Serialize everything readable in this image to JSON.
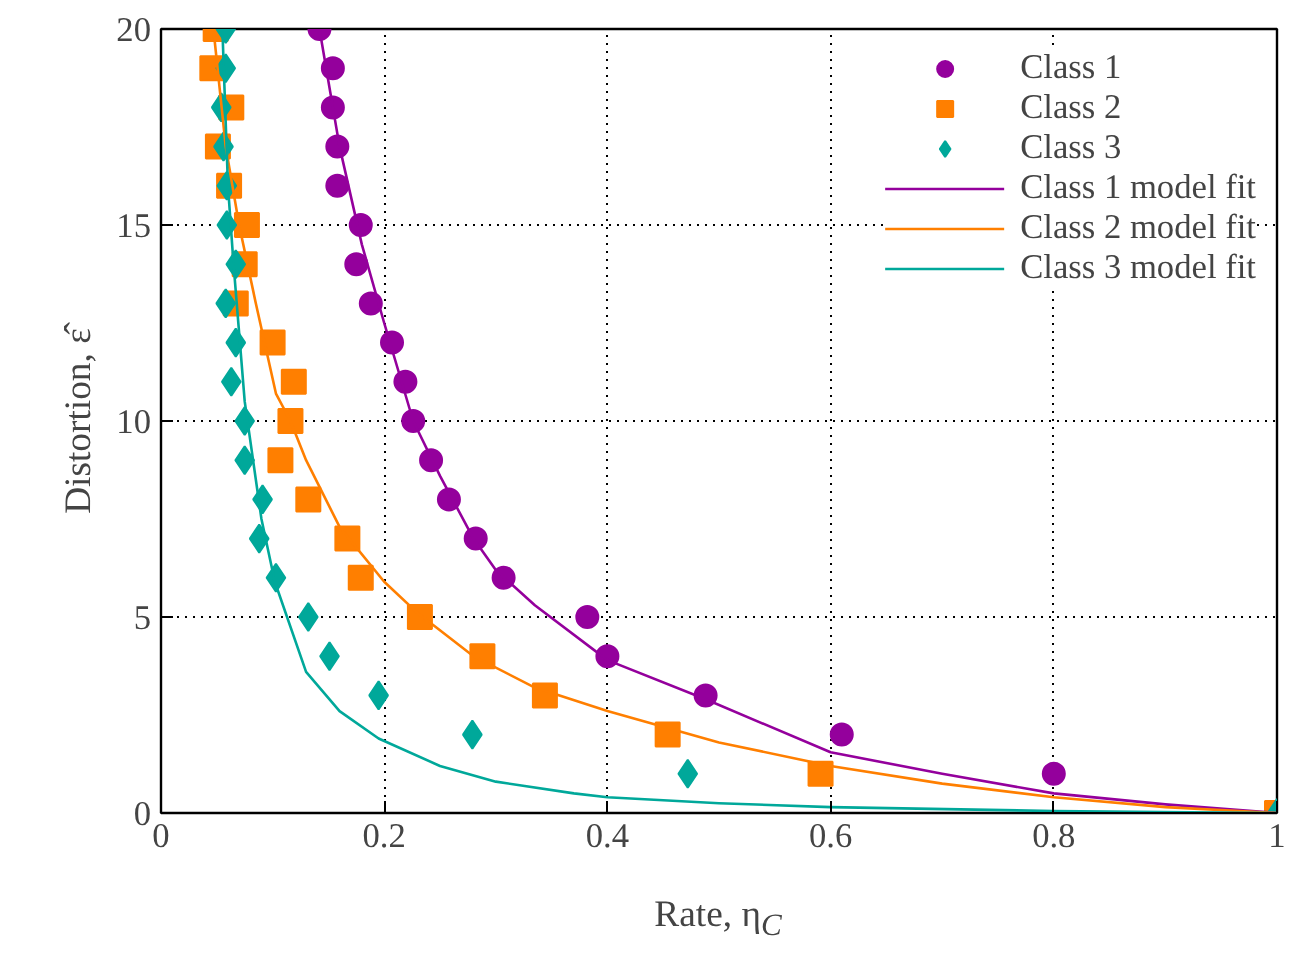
{
  "chart_data": {
    "type": "scatter",
    "xlabel": "Rate, η$_{C}$",
    "ylabel": "Distortion, ε̂",
    "xlim": [
      0,
      1
    ],
    "ylim": [
      0,
      20
    ],
    "xticks": [
      0,
      0.2,
      0.4,
      0.6,
      0.8,
      1
    ],
    "yticks": [
      0,
      5,
      10,
      15,
      20
    ],
    "grid": true,
    "legend": "top right",
    "series": [
      {
        "name": "Class 1",
        "marker": "circle",
        "color": "#94009c",
        "x": [
          0.142,
          0.154,
          0.154,
          0.158,
          0.158,
          0.179,
          0.175,
          0.188,
          0.207,
          0.219,
          0.226,
          0.242,
          0.258,
          0.282,
          0.307,
          0.382,
          0.4,
          0.488,
          0.61,
          0.8
        ],
        "values": [
          20,
          19,
          18,
          17,
          16,
          15,
          14,
          13,
          12,
          11,
          10,
          9,
          8,
          7,
          6,
          5,
          4,
          3,
          2,
          1
        ]
      },
      {
        "name": "Class 2",
        "marker": "square",
        "color": "#ff7f00",
        "x": [
          0.049,
          0.046,
          0.063,
          0.051,
          0.061,
          0.077,
          0.075,
          0.067,
          0.1,
          0.119,
          0.116,
          0.107,
          0.132,
          0.167,
          0.179,
          0.232,
          0.288,
          0.344,
          0.454,
          0.591,
          1.0
        ],
        "values": [
          20,
          19,
          18,
          17,
          16,
          15,
          14,
          13,
          12,
          11,
          10,
          9,
          8,
          7,
          6,
          5,
          4,
          3,
          2,
          1,
          0
        ]
      },
      {
        "name": "Class 3",
        "marker": "diamond",
        "color": "#00a89a",
        "x": [
          0.058,
          0.058,
          0.054,
          0.056,
          0.059,
          0.059,
          0.067,
          0.058,
          0.067,
          0.063,
          0.075,
          0.075,
          0.091,
          0.088,
          0.103,
          0.132,
          0.151,
          0.195,
          0.279,
          0.472,
          1.0
        ],
        "values": [
          20,
          19,
          18,
          17,
          16,
          15,
          14,
          13,
          12,
          11,
          10,
          9,
          8,
          7,
          6,
          5,
          4,
          3,
          2,
          1,
          0
        ]
      },
      {
        "name": "Class 1 model fit",
        "type": "line",
        "color": "#94009c",
        "x": [
          0.142,
          0.16,
          0.18,
          0.2,
          0.226,
          0.25,
          0.28,
          0.3,
          0.335,
          0.4,
          0.488,
          0.6,
          0.7,
          0.8,
          0.9,
          1.0
        ],
        "values": [
          20,
          17,
          14.5,
          12.5,
          10,
          8.6,
          7,
          6.2,
          5.3,
          3.9,
          2.9,
          1.55,
          1.0,
          0.5,
          0.22,
          0
        ]
      },
      {
        "name": "Class 2 model fit",
        "type": "line",
        "color": "#ff7f00",
        "x": [
          0.047,
          0.058,
          0.07,
          0.085,
          0.103,
          0.116,
          0.13,
          0.16,
          0.2,
          0.23,
          0.28,
          0.335,
          0.4,
          0.5,
          0.6,
          0.7,
          0.8,
          0.9,
          1.0
        ],
        "values": [
          20,
          17,
          15,
          13,
          10.7,
          10,
          9,
          7.3,
          5.9,
          5.1,
          4.0,
          3.2,
          2.6,
          1.8,
          1.2,
          0.75,
          0.4,
          0.15,
          0
        ]
      },
      {
        "name": "Class 3 model fit",
        "type": "line",
        "color": "#00a89a",
        "x": [
          0.055,
          0.06,
          0.065,
          0.075,
          0.09,
          0.102,
          0.13,
          0.16,
          0.195,
          0.25,
          0.3,
          0.37,
          0.4,
          0.5,
          0.6,
          0.8,
          1.0
        ],
        "values": [
          20,
          16,
          14,
          10.5,
          7.5,
          5.9,
          3.6,
          2.6,
          1.9,
          1.2,
          0.8,
          0.5,
          0.4,
          0.25,
          0.15,
          0.05,
          0
        ]
      }
    ]
  }
}
